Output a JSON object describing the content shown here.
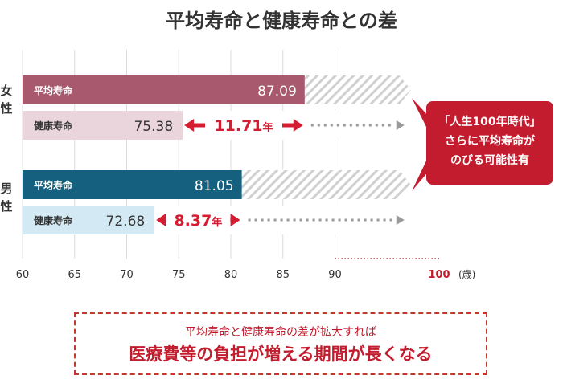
{
  "title": "平均寿命と健康寿命との差",
  "chart_data": {
    "type": "bar",
    "orientation": "horizontal",
    "xlim": [
      60,
      100
    ],
    "x_ticks": [
      "60",
      "65",
      "70",
      "75",
      "80",
      "85",
      "90",
      "100"
    ],
    "x_unit": "(歳)",
    "groups": [
      {
        "label": "女\n性",
        "bars": [
          {
            "name": "平均寿命",
            "value": 87.09,
            "value_label": "87.09"
          },
          {
            "name": "健康寿命",
            "value": 75.38,
            "value_label": "75.38"
          }
        ],
        "gap_label": "11.71",
        "gap_unit": "年",
        "colors": {
          "avg": "#a8596e",
          "healthy": "#ead5dc",
          "gap": "#d51d32"
        }
      },
      {
        "label": "男\n性",
        "bars": [
          {
            "name": "平均寿命",
            "value": 81.05,
            "value_label": "81.05"
          },
          {
            "name": "健康寿命",
            "value": 72.68,
            "value_label": "72.68"
          }
        ],
        "gap_label": "8.37",
        "gap_unit": "年",
        "colors": {
          "avg": "#14607e",
          "healthy": "#d3eaf4",
          "gap": "#d51d32"
        }
      }
    ],
    "callout": {
      "lines": [
        "「人生100年時代」",
        "さらに平均寿命が",
        "のびる可能性有"
      ],
      "color": "#c21c2e"
    },
    "grid": true
  },
  "note": {
    "line1": "平均寿命と健康寿命の差が拡大すれば",
    "line2": "医療費等の負担が増える期間が長くなる"
  }
}
